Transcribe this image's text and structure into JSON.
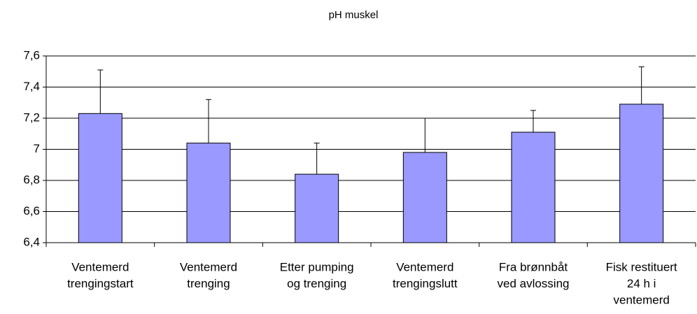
{
  "chart_data": {
    "type": "bar",
    "title": "pH muskel",
    "categories": [
      [
        "Ventemerd",
        "trengingstart"
      ],
      [
        "Ventemerd",
        "trenging"
      ],
      [
        "Etter pumping",
        "og trenging"
      ],
      [
        "Ventemerd",
        "trengingslutt"
      ],
      [
        "Fra brønnbåt",
        "ved avlossing"
      ],
      [
        "Fisk restituert",
        "24 h i",
        "ventemerd"
      ]
    ],
    "values": [
      7.23,
      7.04,
      6.84,
      6.98,
      7.11,
      7.29
    ],
    "errors": [
      0.28,
      0.28,
      0.2,
      0.22,
      0.14,
      0.24
    ],
    "color": "#9999ff",
    "ylim": [
      6.4,
      7.6
    ],
    "yticks": [
      {
        "value": 6.4,
        "label": "6,4"
      },
      {
        "value": 6.6,
        "label": "6,6"
      },
      {
        "value": 6.8,
        "label": "6,8"
      },
      7,
      {
        "value": 7.2,
        "label": "7,2"
      },
      {
        "value": 7.4,
        "label": "7,4"
      },
      {
        "value": 7.6,
        "label": "7,6"
      }
    ],
    "grid": true
  }
}
